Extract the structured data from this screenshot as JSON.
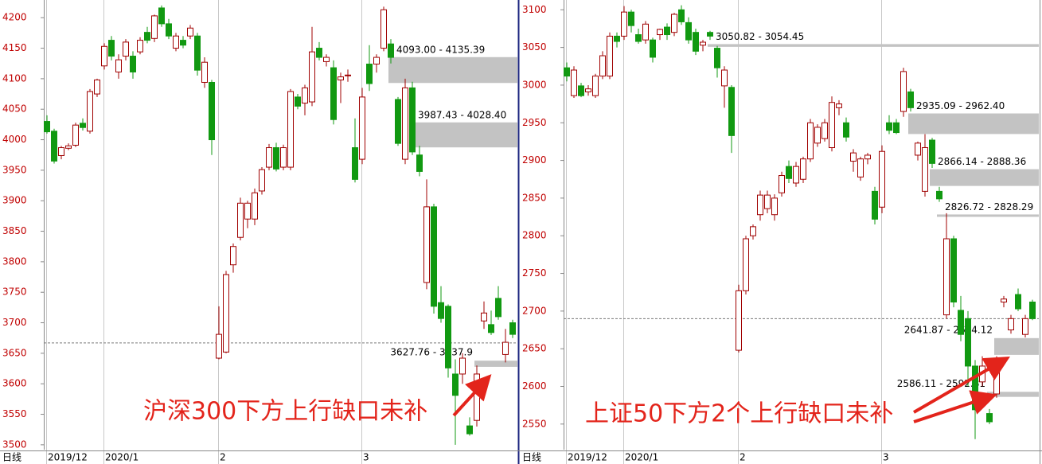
{
  "chart_data": [
    {
      "type": "candlestick",
      "period_label": "日线",
      "annotation": "沪深300下方上行缺口未补",
      "categories": [
        "2019/12",
        null,
        null,
        null,
        null,
        null,
        null,
        null,
        "2020/1",
        null,
        null,
        null,
        null,
        null,
        null,
        null,
        null,
        null,
        null,
        null,
        null,
        null,
        null,
        null,
        "2",
        null,
        null,
        null,
        null,
        null,
        null,
        null,
        null,
        null,
        null,
        null,
        null,
        null,
        null,
        null,
        null,
        null,
        null,
        null,
        "3",
        null,
        null,
        null,
        null,
        null,
        null,
        null,
        null,
        null,
        null,
        null,
        null,
        null,
        null,
        null,
        null,
        null,
        null,
        null,
        null,
        null
      ],
      "open": [
        4030,
        4014,
        3974,
        3986,
        3991,
        4027,
        4014,
        4075,
        4121,
        4163,
        4111,
        4137,
        4137,
        4144,
        4176,
        4166,
        4216,
        4190,
        4150,
        4163,
        4170,
        4170,
        4094,
        4094,
        3642,
        3652,
        3795,
        3840,
        3870,
        3870,
        3916,
        3955,
        3987,
        3955,
        3955,
        4070,
        4060,
        4062,
        4150,
        4128,
        4118,
        4098,
        4105,
        3987,
        3968,
        4124,
        4124,
        4150,
        4157,
        4066,
        3968,
        4085,
        3975,
        3766,
        3890,
        3733,
        3727,
        3616,
        3616,
        3531,
        3540,
        3703,
        3697,
        3740,
        3648,
        3700
      ],
      "high": [
        4040,
        4018,
        3990,
        3994,
        4028,
        4035,
        4083,
        4100,
        4158,
        4170,
        4140,
        4165,
        4145,
        4168,
        4185,
        4205,
        4220,
        4198,
        4175,
        4170,
        4188,
        4175,
        4135,
        4098,
        3727,
        3785,
        3830,
        3905,
        3900,
        3920,
        3955,
        3993,
        3995,
        3992,
        4083,
        4075,
        4090,
        4185,
        4160,
        4140,
        4130,
        4110,
        4115,
        4035,
        4085,
        4155,
        4140,
        4218,
        4165,
        4070,
        4100,
        4095,
        3990,
        3935,
        3895,
        3760,
        3730,
        3640,
        3650,
        3545,
        3630,
        3735,
        3720,
        3760,
        3690,
        3705
      ],
      "low": [
        4010,
        3961,
        3968,
        3983,
        3988,
        4015,
        4010,
        4070,
        4115,
        4130,
        4100,
        4130,
        4100,
        4140,
        4158,
        4160,
        4185,
        4165,
        4145,
        4150,
        4165,
        4105,
        4085,
        3975,
        3640,
        3650,
        3782,
        3835,
        3855,
        3860,
        3910,
        3950,
        3948,
        3950,
        3950,
        4050,
        4040,
        4055,
        4130,
        4120,
        4025,
        4060,
        4095,
        3930,
        3960,
        4080,
        4110,
        4145,
        4125,
        3990,
        3960,
        3975,
        3940,
        3755,
        3715,
        3700,
        3610,
        3500,
        3600,
        3515,
        3530,
        3690,
        3680,
        3705,
        3635,
        3675
      ],
      "close": [
        4013,
        3965,
        3987,
        3990,
        4024,
        4020,
        4079,
        4098,
        4153,
        4137,
        4131,
        4160,
        4111,
        4163,
        4163,
        4203,
        4190,
        4170,
        4170,
        4155,
        4183,
        4114,
        4127,
        4000,
        3681,
        3779,
        3825,
        3896,
        3896,
        3913,
        3951,
        3987,
        3952,
        3987,
        4079,
        4055,
        4085,
        4144,
        4135,
        4135,
        4033,
        4103,
        4106,
        3935,
        4070,
        4092,
        4135,
        4213,
        4135,
        3994,
        4085,
        3980,
        3948,
        3890,
        3727,
        3707,
        3626,
        3581,
        3642,
        3518,
        3616,
        3716,
        3684,
        3710,
        3668,
        3681
      ],
      "up_color": "#a00000",
      "down_color": "#119911",
      "ylim": [
        3492,
        4229
      ],
      "yticks": [
        3500,
        3550,
        3600,
        3650,
        3700,
        3750,
        3800,
        3850,
        3900,
        3950,
        4000,
        4050,
        4100,
        4150,
        4200
      ],
      "reference_line": 3667,
      "gaps": [
        {
          "label": "4093.00 - 4135.39",
          "low": 4093.0,
          "high": 4135.39,
          "start_index": 48
        },
        {
          "label": "3987.43 - 4028.40",
          "low": 3987.43,
          "high": 4028.4,
          "start_index": 51
        },
        {
          "label": "3627.76 - 3637.9",
          "low": 3627.76,
          "high": 3637.9,
          "start_index": 60
        }
      ]
    },
    {
      "type": "candlestick",
      "period_label": "日线",
      "annotation": "上证50下方2个上行缺口未补",
      "categories": [
        "2019/12",
        null,
        null,
        null,
        null,
        null,
        null,
        null,
        "2020/1",
        null,
        null,
        null,
        null,
        null,
        null,
        null,
        null,
        null,
        null,
        null,
        null,
        null,
        null,
        null,
        "2",
        null,
        null,
        null,
        null,
        null,
        null,
        null,
        null,
        null,
        null,
        null,
        null,
        null,
        null,
        null,
        null,
        null,
        null,
        null,
        "3",
        null,
        null,
        null,
        null,
        null,
        null,
        null,
        null,
        null,
        null,
        null,
        null,
        null,
        null,
        null,
        null,
        null,
        null,
        null,
        null,
        null
      ],
      "open": [
        3023,
        2986,
        2999,
        2991,
        2986,
        3012,
        3012,
        3065,
        3065,
        3097,
        3067,
        3060,
        3060,
        3067,
        3077,
        3070,
        3100,
        3083,
        3070,
        3053,
        3070,
        3049,
        2999,
        2997,
        2648,
        2727,
        2800,
        2828,
        2836,
        2828,
        2857,
        2892,
        2870,
        2875,
        2902,
        2923,
        2929,
        2917,
        2970,
        2950,
        2899,
        2878,
        2902,
        2859,
        2838,
        2950,
        2950,
        2965,
        2991,
        2907,
        2859,
        2927,
        2859,
        2695,
        2796,
        2701,
        2690,
        2627,
        2606,
        2564,
        2590,
        2712,
        2675,
        2722,
        2669,
        2712
      ],
      "high": [
        3030,
        3025,
        3003,
        3000,
        3015,
        3045,
        3070,
        3070,
        3105,
        3100,
        3075,
        3085,
        3063,
        3075,
        3082,
        3096,
        3106,
        3090,
        3075,
        3060,
        3072,
        3052,
        3025,
        3000,
        2735,
        2800,
        2815,
        2860,
        2860,
        2855,
        2885,
        2900,
        2898,
        2905,
        2955,
        2948,
        2955,
        2985,
        2980,
        2957,
        2915,
        2905,
        2910,
        2865,
        2920,
        2960,
        2955,
        3023,
        2995,
        2925,
        2935,
        2930,
        2865,
        2830,
        2800,
        2720,
        2700,
        2635,
        2640,
        2570,
        2640,
        2720,
        2695,
        2730,
        2695,
        2715
      ],
      "low": [
        3005,
        2983,
        2984,
        2986,
        2983,
        3008,
        3008,
        3050,
        3060,
        3070,
        3055,
        3055,
        3030,
        3060,
        3060,
        3065,
        3080,
        3055,
        3040,
        3045,
        3060,
        3010,
        2970,
        2910,
        2645,
        2722,
        2795,
        2820,
        2830,
        2820,
        2852,
        2870,
        2865,
        2870,
        2898,
        2918,
        2925,
        2912,
        2960,
        2925,
        2885,
        2873,
        2895,
        2815,
        2830,
        2935,
        2935,
        2958,
        2965,
        2900,
        2852,
        2890,
        2845,
        2690,
        2705,
        2660,
        2600,
        2530,
        2600,
        2550,
        2585,
        2705,
        2670,
        2700,
        2665,
        2688
      ],
      "close": [
        3012,
        3020,
        2986,
        2995,
        3012,
        3039,
        3065,
        3058,
        3097,
        3079,
        3058,
        3081,
        3037,
        3074,
        3067,
        3094,
        3084,
        3060,
        3045,
        3057,
        3065,
        3023,
        3020,
        2933,
        2727,
        2796,
        2812,
        2854,
        2854,
        2850,
        2880,
        2876,
        2892,
        2902,
        2950,
        2944,
        2950,
        2977,
        2975,
        2931,
        2910,
        2902,
        2907,
        2822,
        2912,
        2940,
        2937,
        3018,
        2970,
        2923,
        2917,
        2896,
        2849,
        2796,
        2712,
        2669,
        2627,
        2569,
        2627,
        2553,
        2637,
        2716,
        2690,
        2703,
        2690,
        2690
      ],
      "up_color": "#a00000",
      "down_color": "#119911",
      "ylim": [
        2516,
        3113
      ],
      "yticks": [
        2550,
        2600,
        2650,
        2700,
        2750,
        2800,
        2850,
        2900,
        2950,
        3000,
        3050,
        3100
      ],
      "reference_line": 2690,
      "gaps": [
        {
          "label": "3050.82 - 3054.45",
          "low": 3050.82,
          "high": 3054.45,
          "start_index": 20
        },
        {
          "label": "2935.09 - 2962.40",
          "low": 2935.09,
          "high": 2962.4,
          "start_index": 48
        },
        {
          "label": "2866.14 - 2888.36",
          "low": 2866.14,
          "high": 2888.36,
          "start_index": 51
        },
        {
          "label": "2826.72 - 2828.29",
          "low": 2826.72,
          "high": 2828.29,
          "start_index": 52
        },
        {
          "label": "2641.87 - 2664.12",
          "low": 2641.87,
          "high": 2664.12,
          "start_index": 60
        },
        {
          "label": "2586.11 - 2592.81",
          "low": 2586.11,
          "high": 2592.81,
          "start_index": 59
        }
      ]
    }
  ]
}
